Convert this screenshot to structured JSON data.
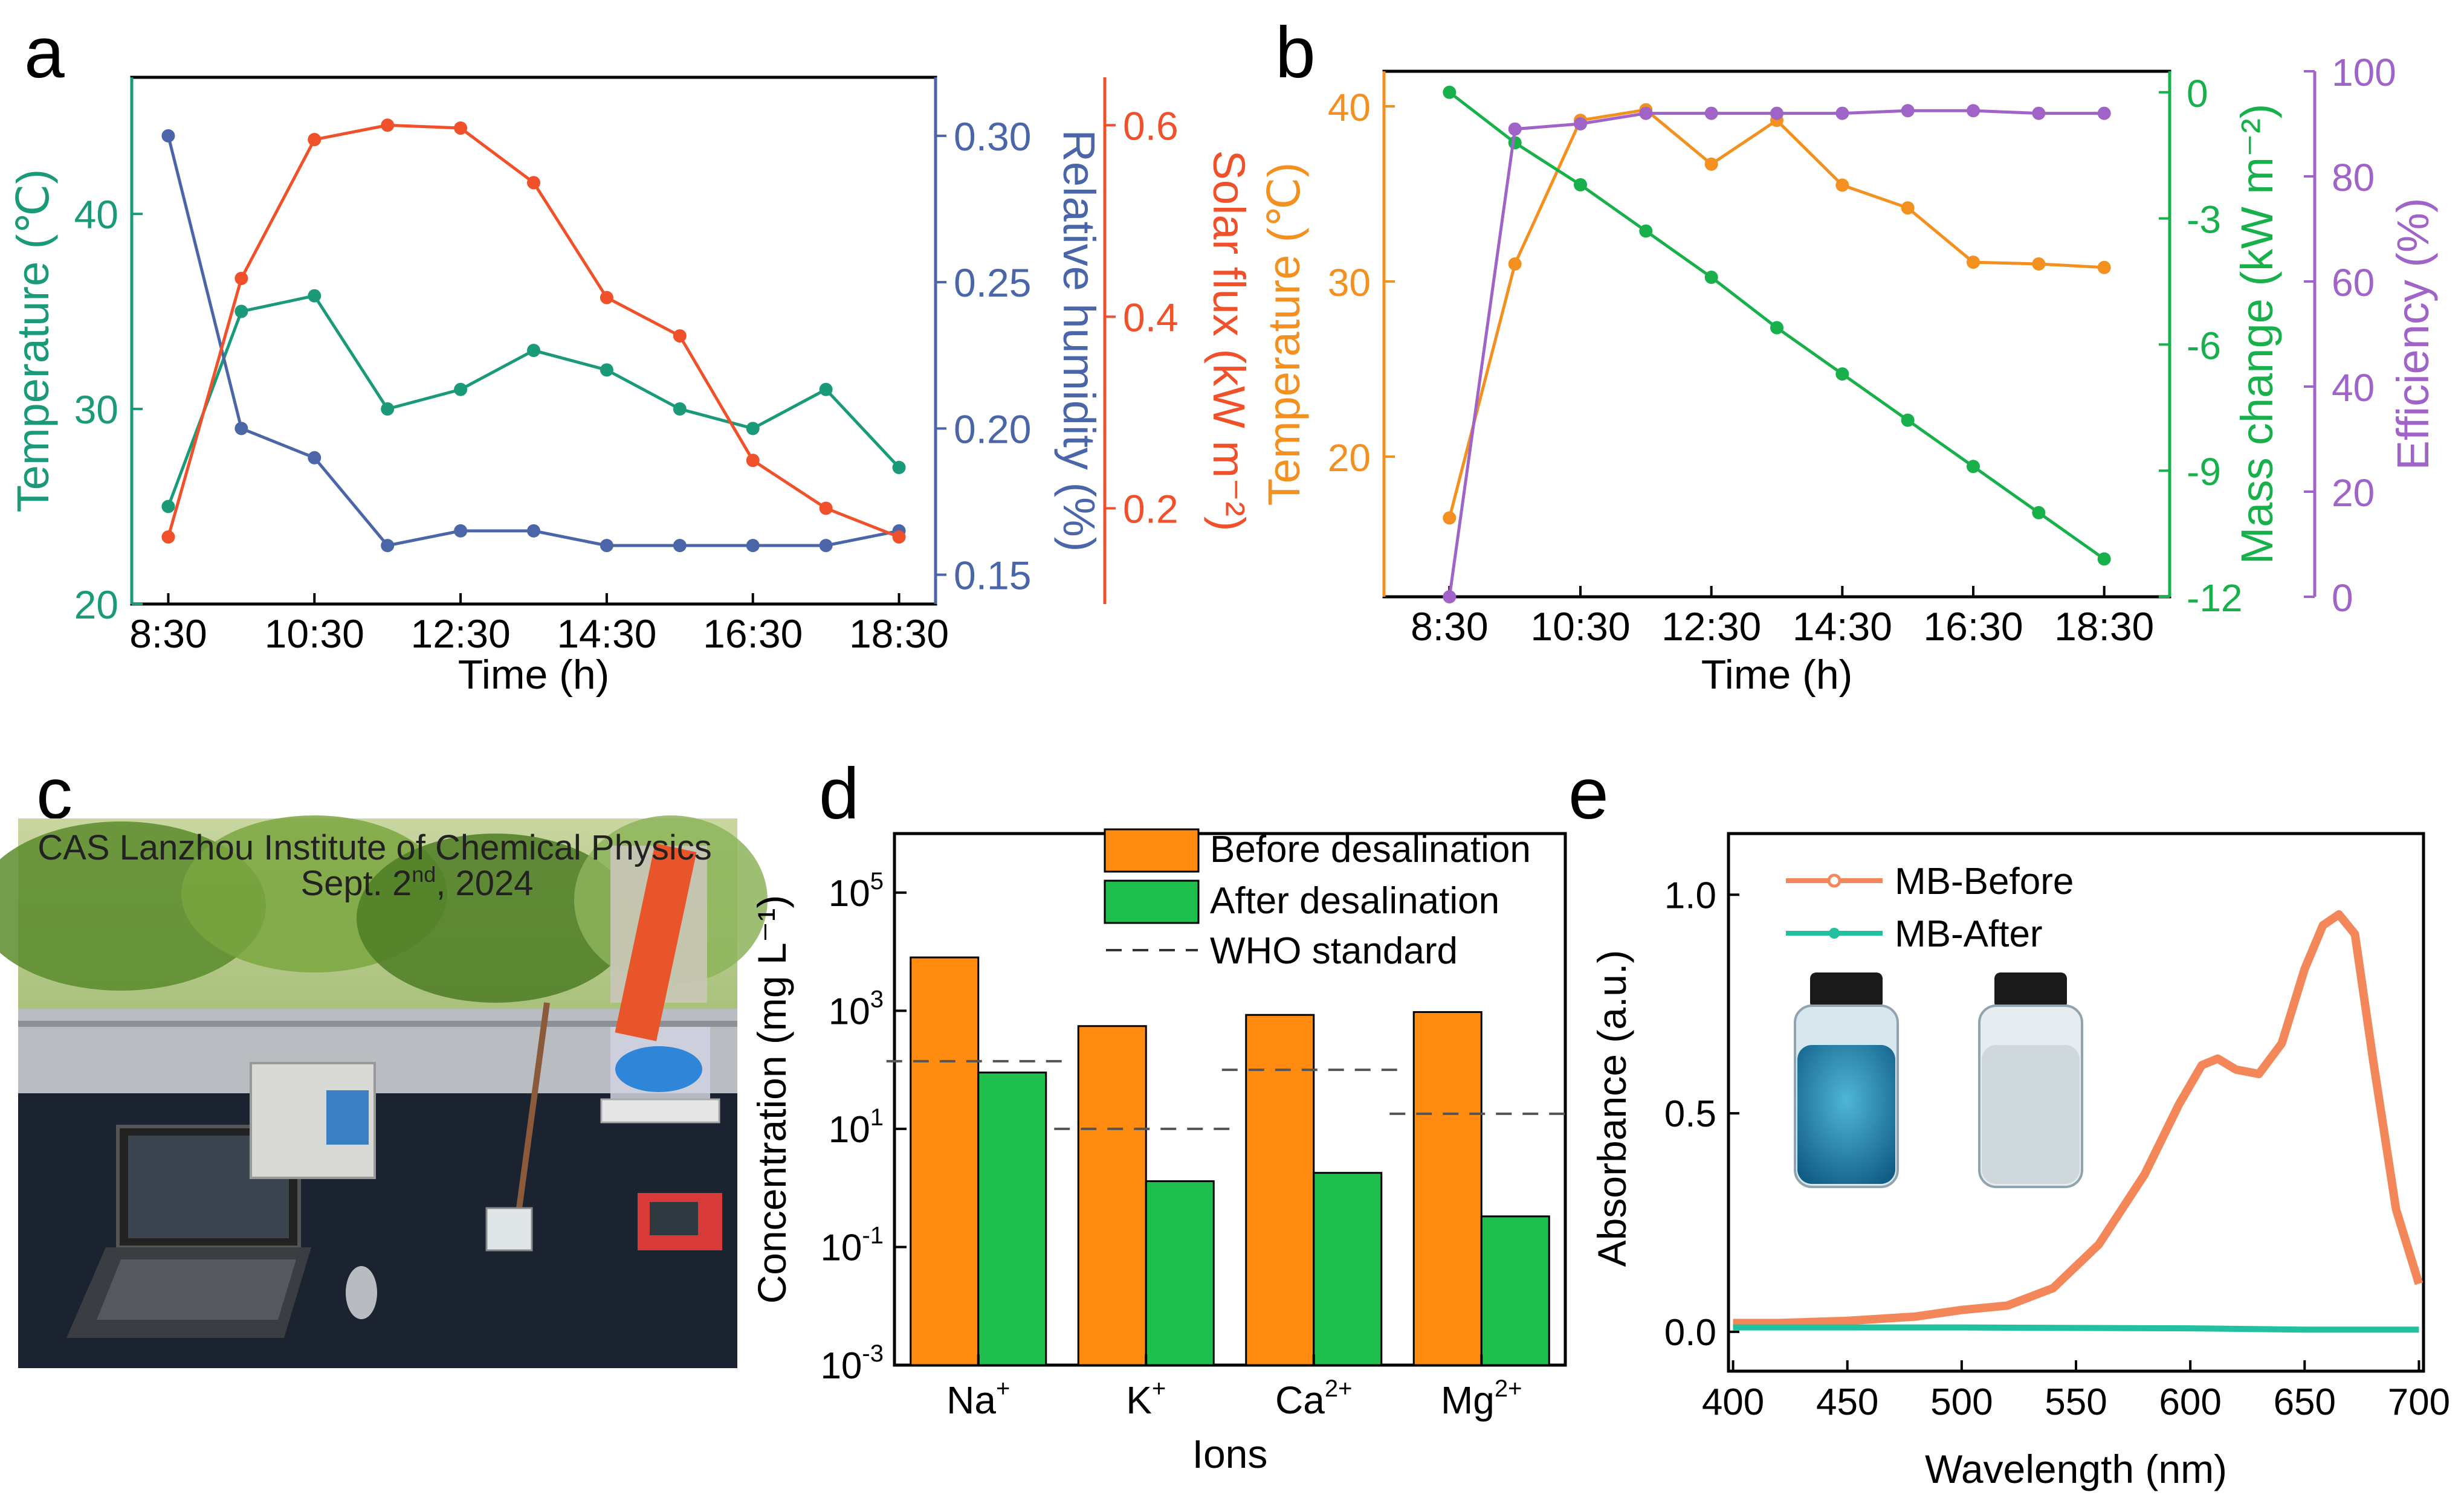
{
  "figure": {
    "panel_labels": {
      "a": "a",
      "b": "b",
      "c": "c",
      "d": "d",
      "e": "e"
    },
    "photo_caption_line1": "CAS Lanzhou Institute of Chemical Physics",
    "photo_caption_line2_pre": "Sept. 2",
    "photo_caption_line2_sup": "nd",
    "photo_caption_line2_post": ", 2024"
  },
  "colors": {
    "temperature_a": "#1a9a78",
    "humidity": "#4a66a8",
    "solar": "#f0502a",
    "temperature_b": "#f39020",
    "mass": "#18b04a",
    "efficiency": "#a064c8",
    "before_bar": "#ff8c10",
    "after_bar": "#1ebf4c",
    "mb_before": "#f4875a",
    "mb_after": "#20c0a0"
  },
  "chart_data": [
    {
      "id": "a",
      "type": "line",
      "title": "",
      "xlabel": "Time (h)",
      "x": [
        0,
        1,
        2,
        3,
        4,
        5,
        6,
        7,
        8,
        9,
        10
      ],
      "x_tick_labels": [
        "8:30",
        "10:30",
        "12:30",
        "14:30",
        "16:30",
        "18:30"
      ],
      "x_tick_positions": [
        0,
        2,
        4,
        6,
        8,
        10
      ],
      "xlim": [
        -0.5,
        10.5
      ],
      "axes": {
        "temperature": {
          "label": "Temperature (℃)",
          "ylim": [
            20,
            47
          ],
          "ticks": [
            20,
            30,
            40
          ],
          "tick_labels": [
            "20",
            "30",
            "40"
          ]
        },
        "humidity": {
          "label": "Relative humidity (%)",
          "ylim": [
            0.14,
            0.32
          ],
          "ticks": [
            0.15,
            0.2,
            0.25,
            0.3
          ],
          "tick_labels": [
            "0.15",
            "0.20",
            "0.25",
            "0.30"
          ]
        },
        "solar": {
          "label": "Solar flux (kW m⁻²)",
          "ylim": [
            0.1,
            0.65
          ],
          "ticks": [
            0.2,
            0.4,
            0.6
          ],
          "tick_labels": [
            "0.2",
            "0.4",
            "0.6"
          ]
        }
      },
      "series": [
        {
          "name": "Temperature",
          "axis": "temperature",
          "values": [
            25,
            35,
            35.8,
            30,
            31,
            33,
            32,
            30,
            29,
            31,
            27
          ]
        },
        {
          "name": "Relative humidity",
          "axis": "humidity",
          "values": [
            0.3,
            0.2,
            0.19,
            0.16,
            0.165,
            0.165,
            0.16,
            0.16,
            0.16,
            0.16,
            0.165
          ]
        },
        {
          "name": "Solar flux",
          "axis": "solar",
          "values": [
            0.17,
            0.44,
            0.585,
            0.6,
            0.597,
            0.54,
            0.42,
            0.38,
            0.25,
            0.2,
            0.17
          ]
        }
      ]
    },
    {
      "id": "b",
      "type": "line",
      "title": "",
      "xlabel": "Time (h)",
      "x": [
        0,
        1,
        2,
        3,
        4,
        5,
        6,
        7,
        8,
        9,
        10
      ],
      "x_tick_labels": [
        "8:30",
        "10:30",
        "12:30",
        "14:30",
        "16:30",
        "18:30"
      ],
      "x_tick_positions": [
        0,
        2,
        4,
        6,
        8,
        10
      ],
      "xlim": [
        -1,
        11
      ],
      "axes": {
        "temperature": {
          "label": "Temperature (℃)",
          "ylim": [
            12,
            42
          ],
          "ticks": [
            20,
            30,
            40
          ],
          "tick_labels": [
            "20",
            "30",
            "40"
          ]
        },
        "mass": {
          "label": "Mass change (kW m⁻²)",
          "ylim": [
            -12,
            0.5
          ],
          "ticks": [
            0,
            -3,
            -6,
            -9,
            -12
          ],
          "tick_labels": [
            "0",
            "-3",
            "-6",
            "-9",
            "-12"
          ]
        },
        "efficiency": {
          "label": "Efficiency (%)",
          "ylim": [
            0,
            100
          ],
          "ticks": [
            0,
            20,
            40,
            60,
            80,
            100
          ],
          "tick_labels": [
            "0",
            "20",
            "40",
            "60",
            "80",
            "100"
          ]
        }
      },
      "series": [
        {
          "name": "Temperature",
          "axis": "temperature",
          "values": [
            16.5,
            31,
            39.2,
            39.8,
            36.7,
            39.2,
            35.5,
            34.2,
            31.1,
            31,
            30.8
          ]
        },
        {
          "name": "Mass change",
          "axis": "mass",
          "values": [
            0,
            -1.2,
            -2.2,
            -3.3,
            -4.4,
            -5.6,
            -6.7,
            -7.8,
            -8.9,
            -10,
            -11.1
          ]
        },
        {
          "name": "Efficiency",
          "axis": "efficiency",
          "values": [
            0,
            89,
            90,
            92,
            92,
            92,
            92,
            92.5,
            92.5,
            92,
            92
          ]
        }
      ]
    },
    {
      "id": "d",
      "type": "bar",
      "title": "",
      "xlabel": "Ions",
      "ylabel": "Concentration (mg L⁻¹)",
      "yscale": "log",
      "ylim_exp": [
        -3,
        6
      ],
      "y_tick_exponents": [
        -3,
        -1,
        1,
        3,
        5
      ],
      "categories": [
        "Na",
        "K",
        "Ca",
        "Mg"
      ],
      "category_superscripts": [
        "+",
        "+",
        "2+",
        "2+"
      ],
      "series": [
        {
          "name": "Before desalination",
          "values": [
            8000,
            550,
            850,
            950
          ]
        },
        {
          "name": "After desalination",
          "values": [
            90,
            1.3,
            1.8,
            0.33
          ]
        }
      ],
      "who_standard": {
        "name": "WHO standard",
        "values": [
          140,
          10,
          100,
          18
        ]
      }
    },
    {
      "id": "e",
      "type": "line",
      "title": "",
      "xlabel": "Wavelength (nm)",
      "ylabel": "Absorbance (a.u.)",
      "xlim": [
        398,
        702
      ],
      "ylim": [
        -0.09,
        1.14
      ],
      "x_ticks": [
        400,
        450,
        500,
        550,
        600,
        650,
        700
      ],
      "y_ticks": [
        0.0,
        0.5,
        1.0
      ],
      "y_tick_labels": [
        "0.0",
        "0.5",
        "1.0"
      ],
      "series": [
        {
          "name": "MB-Before",
          "x": [
            400,
            420,
            450,
            480,
            500,
            520,
            540,
            560,
            580,
            595,
            605,
            612,
            620,
            630,
            640,
            650,
            658,
            665,
            672,
            680,
            690,
            700
          ],
          "values": [
            0.02,
            0.02,
            0.025,
            0.035,
            0.05,
            0.06,
            0.1,
            0.2,
            0.36,
            0.52,
            0.61,
            0.625,
            0.6,
            0.59,
            0.66,
            0.83,
            0.93,
            0.955,
            0.91,
            0.62,
            0.28,
            0.11
          ]
        },
        {
          "name": "MB-After",
          "x": [
            400,
            500,
            600,
            650,
            700
          ],
          "values": [
            0.01,
            0.01,
            0.008,
            0.005,
            0.005
          ]
        }
      ]
    }
  ]
}
